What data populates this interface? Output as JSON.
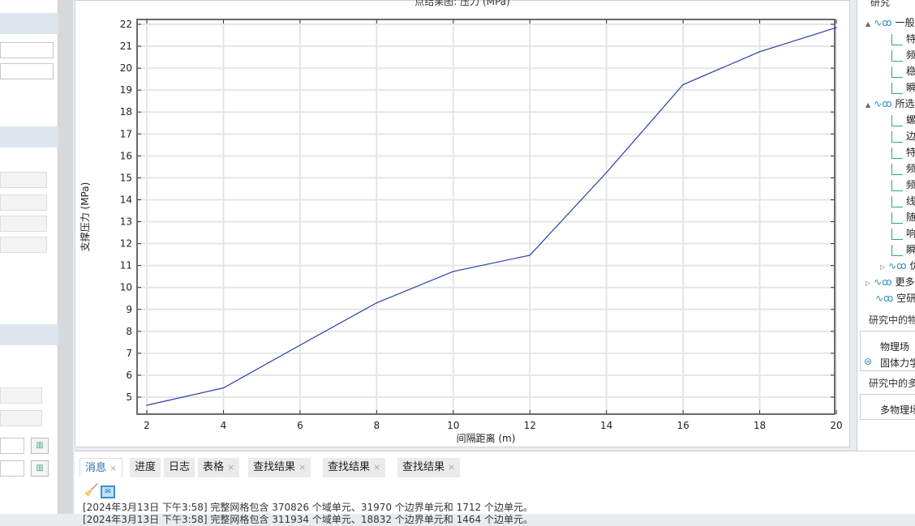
{
  "plot": {
    "title": "点结果图: 压力 (MPa)"
  },
  "chart_data": {
    "type": "line",
    "title": "点结果图: 压力 (MPa)",
    "xlabel": "间隔距离 (m)",
    "ylabel": "支撑压力 (MPa)",
    "xlim": [
      2,
      20
    ],
    "ylim": [
      4.3,
      22.2
    ],
    "xticks": [
      2,
      4,
      6,
      8,
      10,
      12,
      14,
      16,
      18,
      20
    ],
    "yticks": [
      5,
      6,
      7,
      8,
      9,
      10,
      11,
      12,
      13,
      14,
      15,
      16,
      17,
      18,
      19,
      20,
      21,
      22
    ],
    "grid": true,
    "color": "#2b3fa8",
    "x": [
      2,
      4,
      6,
      8,
      10,
      12,
      14,
      16,
      18,
      20
    ],
    "y": [
      4.63,
      5.42,
      7.37,
      9.3,
      10.73,
      11.47,
      15.24,
      19.25,
      20.75,
      21.85
    ]
  },
  "right": {
    "study_label": "研究",
    "tree": [
      {
        "label": "一般研究",
        "level": 0,
        "expander": "▲",
        "type": "node"
      },
      {
        "label": "特征频率",
        "level": 1,
        "type": "leaf"
      },
      {
        "label": "频域",
        "level": 1,
        "type": "leaf"
      },
      {
        "label": "稳态",
        "level": 1,
        "type": "leaf"
      },
      {
        "label": "瞬态",
        "level": 1,
        "type": "leaf"
      },
      {
        "label": "所选物理场",
        "level": 0,
        "expander": "▲",
        "type": "node"
      },
      {
        "label": "螺栓预紧",
        "level": 1,
        "type": "leaf"
      },
      {
        "label": "边界模态",
        "level": 1,
        "type": "leaf"
      },
      {
        "label": "特征频率",
        "level": 1,
        "type": "leaf"
      },
      {
        "label": "频域",
        "level": 1,
        "type": "leaf"
      },
      {
        "label": "频域模态",
        "level": 1,
        "type": "leaf"
      },
      {
        "label": "线性屈曲",
        "level": 1,
        "type": "leaf"
      },
      {
        "label": "随机振动",
        "level": 1,
        "type": "leaf"
      },
      {
        "label": "响应谱",
        "level": 1,
        "type": "leaf"
      },
      {
        "label": "瞬态",
        "level": 1,
        "type": "leaf"
      },
      {
        "label": "优化",
        "level": 1,
        "expander": "▷",
        "type": "node"
      },
      {
        "label": "更多研究",
        "level": 0,
        "expander": "▷",
        "type": "node"
      },
      {
        "label": "空研究",
        "level": 0,
        "type": "node"
      }
    ],
    "physics_section": "研究中的物理场",
    "physics_header": "物理场",
    "physics_row": "固体力学",
    "multi_section": "研究中的多物理场",
    "multi_header": "多物理场"
  },
  "bottom": {
    "tabs": [
      {
        "label": "消息",
        "closable": true,
        "active": true
      },
      {
        "label": "进度",
        "closable": false
      },
      {
        "label": "日志",
        "closable": false
      },
      {
        "label": "表格",
        "closable": true
      },
      {
        "label": "查找结果",
        "closable": true
      },
      {
        "label": "查找结果",
        "closable": true
      },
      {
        "label": "查找结果",
        "closable": true
      }
    ],
    "close_glyph": "×",
    "log": [
      "[2024年3月13日 下午3:58] 完整网格包含 370826 个域单元、31970 个边界单元和 1712 个边单元。",
      "[2024年3月13日 下午3:58] 完整网格包含 311934 个域单元、18832 个边界单元和 1464 个边单元。"
    ]
  }
}
